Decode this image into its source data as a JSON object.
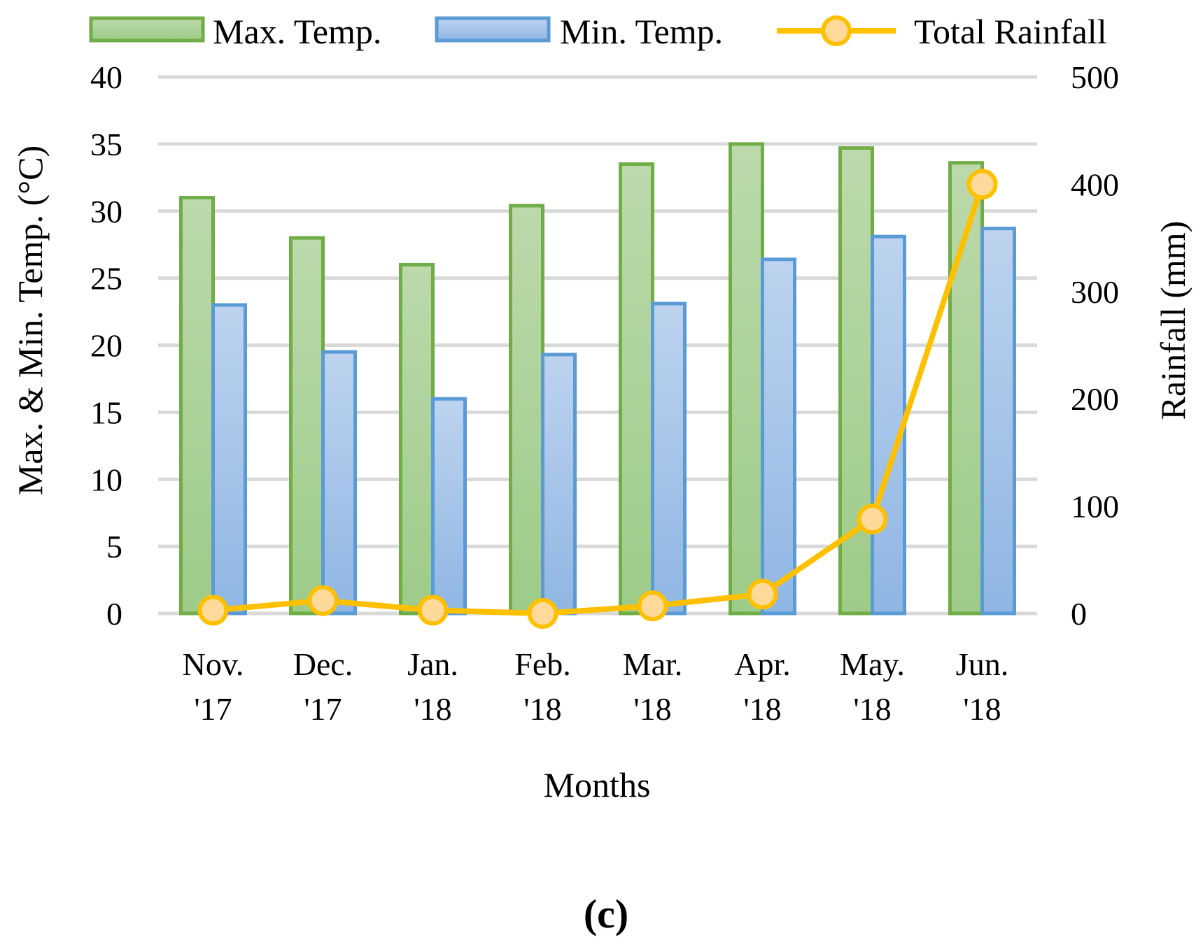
{
  "chart_data": {
    "type": "bar",
    "title": "",
    "categories": [
      [
        "Nov.",
        "'17"
      ],
      [
        "Dec.",
        "'17"
      ],
      [
        "Jan.",
        "'18"
      ],
      [
        "Feb.",
        "'18"
      ],
      [
        "Mar.",
        "'18"
      ],
      [
        "Apr.",
        "'18"
      ],
      [
        "May.",
        "'18"
      ],
      [
        "Jun.",
        "'18"
      ]
    ],
    "series": [
      {
        "name": "Max. Temp.",
        "kind": "bar",
        "axis": "left",
        "values": [
          31.0,
          28.0,
          26.0,
          30.4,
          33.5,
          35.0,
          34.7,
          33.6
        ]
      },
      {
        "name": "Min. Temp.",
        "kind": "bar",
        "axis": "left",
        "values": [
          23.0,
          19.5,
          16.0,
          19.3,
          23.1,
          26.4,
          28.1,
          28.7
        ]
      },
      {
        "name": "Total Rainfall",
        "kind": "line",
        "axis": "right",
        "values": [
          3,
          12,
          3,
          0,
          7,
          18,
          88,
          400
        ]
      }
    ],
    "xlabel": "Months",
    "ylabel": "Max. & Min. Temp. (°C)",
    "y2label": "Rainfall (mm)",
    "ylim": [
      0,
      40
    ],
    "y2lim": [
      0,
      500
    ],
    "yticks": [
      "0",
      "5",
      "10",
      "15",
      "20",
      "25",
      "30",
      "35",
      "40"
    ],
    "y2ticks": [
      "0",
      "100",
      "200",
      "300",
      "400",
      "500"
    ],
    "grid": true,
    "legend_position": "top",
    "panel_label": "(c)",
    "colors": {
      "max_fill_top": "#bcd9ab",
      "max_fill_bottom": "#9dcb88",
      "max_stroke": "#70ad47",
      "min_fill_top": "#bdd3ef",
      "min_fill_bottom": "#8fb6e3",
      "min_stroke": "#5b9bd5",
      "rain_line": "#ffc000",
      "rain_marker_fill": "#ffd99a",
      "grid": "#d9d9d9"
    }
  }
}
